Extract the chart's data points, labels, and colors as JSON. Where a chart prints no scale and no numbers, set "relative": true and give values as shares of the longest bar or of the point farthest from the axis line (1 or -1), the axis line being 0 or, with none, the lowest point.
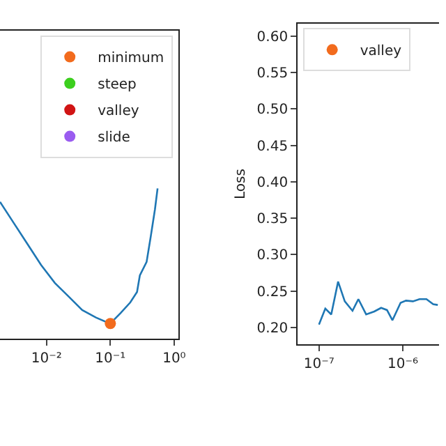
{
  "chart_data": [
    {
      "type": "line",
      "relative": true,
      "log": "x",
      "xlim": [
        0.00186,
        1.16
      ],
      "xticks": [
        {
          "value": 0.01,
          "label": "10⁻²"
        },
        {
          "value": 0.1,
          "label": "10⁻¹"
        },
        {
          "value": 1,
          "label": "10⁰"
        }
      ],
      "legend": "top right",
      "tick_labels": "x",
      "series": [
        {
          "color": "#1f77b4",
          "x": [
            0.00186,
            0.00305,
            0.005,
            0.0082,
            0.0135,
            0.0221,
            0.0362,
            0.0594,
            0.0975,
            0.1,
            0.145,
            0.205,
            0.262,
            0.29,
            0.37,
            0.43,
            0.5,
            0.55
          ],
          "values": [
            0.91,
            0.77,
            0.63,
            0.49,
            0.37,
            0.28,
            0.19,
            0.14,
            0.1,
            0.1,
            0.17,
            0.24,
            0.31,
            0.42,
            0.51,
            0.68,
            0.86,
            1.0
          ]
        },
        {
          "type": "scatter",
          "name": "minimum",
          "color": "#f26b1d",
          "marker": "circle",
          "x": [
            0.1
          ],
          "values": [
            0.1
          ]
        },
        {
          "type": "scatter",
          "name": "steep",
          "color": "#3ccf1e",
          "marker": "circle"
        },
        {
          "type": "scatter",
          "name": "valley",
          "color": "#d11414",
          "marker": "circle"
        },
        {
          "type": "scatter",
          "name": "slide",
          "color": "#9a5cf0",
          "marker": "circle"
        }
      ]
    },
    {
      "type": "line",
      "ylabel": "Loss",
      "log": "x",
      "xlim": [
        5.57e-08,
        2.7e-06
      ],
      "ylim": [
        0.177,
        0.617
      ],
      "xticks": [
        {
          "value": 1e-07,
          "label": "10⁻⁷"
        },
        {
          "value": 1e-06,
          "label": "10⁻⁶"
        }
      ],
      "yticks": [
        {
          "value": 0.2,
          "label": "0.20"
        },
        {
          "value": 0.25,
          "label": "0.25"
        },
        {
          "value": 0.3,
          "label": "0.30"
        },
        {
          "value": 0.35,
          "label": "0.35"
        },
        {
          "value": 0.4,
          "label": "0.40"
        },
        {
          "value": 0.45,
          "label": "0.45"
        },
        {
          "value": 0.5,
          "label": "0.50"
        },
        {
          "value": 0.55,
          "label": "0.55"
        },
        {
          "value": 0.6,
          "label": "0.60"
        }
      ],
      "legend": "top left",
      "series": [
        {
          "color": "#1f77b4",
          "x": [
            1e-07,
            1.19e-07,
            1.4e-07,
            1.69e-07,
            2.03e-07,
            2.51e-07,
            2.95e-07,
            3.65e-07,
            4.56e-07,
            5.51e-07,
            6.47e-07,
            7.52e-07,
            9.4e-07,
            1.09e-06,
            1.32e-06,
            1.58e-06,
            1.91e-06,
            2.3e-06,
            2.61e-06
          ],
          "values": [
            0.204,
            0.226,
            0.218,
            0.263,
            0.236,
            0.223,
            0.239,
            0.218,
            0.222,
            0.227,
            0.224,
            0.21,
            0.234,
            0.237,
            0.236,
            0.239,
            0.239,
            0.232,
            0.231
          ]
        },
        {
          "type": "scatter",
          "name": "valley",
          "color": "#f26b1d",
          "marker": "circle"
        }
      ]
    }
  ]
}
